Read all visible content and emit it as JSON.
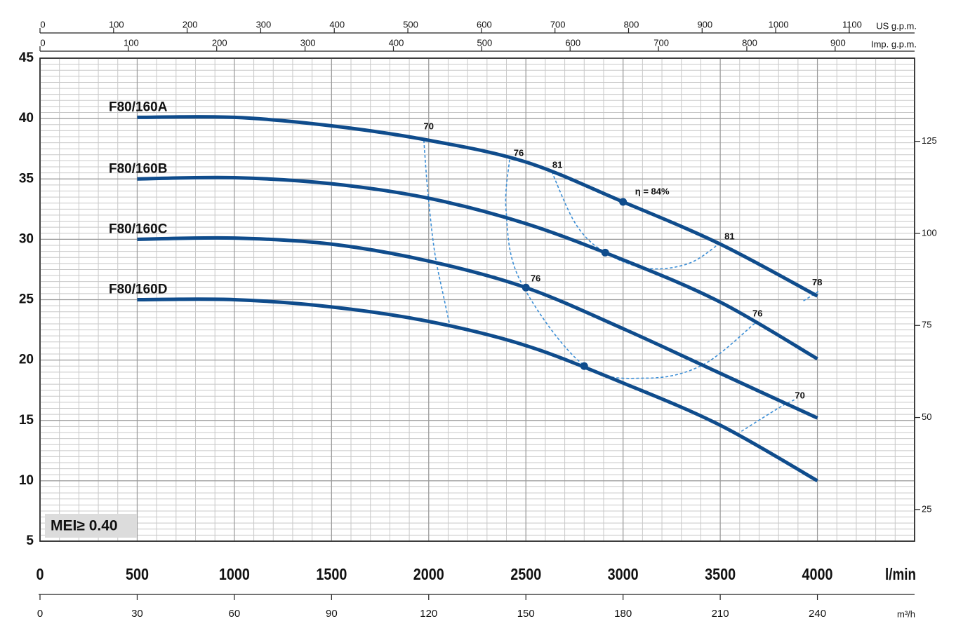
{
  "chart_data": {
    "type": "line",
    "x_label": "l/min",
    "xlim": [
      0,
      4500
    ],
    "xticks": [
      0,
      500,
      1000,
      1500,
      2000,
      2500,
      3000,
      3500,
      4000
    ],
    "ylim": [
      5,
      45
    ],
    "yticks": [
      5,
      10,
      15,
      20,
      25,
      30,
      35,
      40,
      45
    ],
    "grid": true,
    "y2lim": [
      16.4,
      147.6
    ],
    "y2ticks": [
      25,
      50,
      75,
      100,
      125
    ],
    "top_axes": [
      {
        "label": "US g.p.m.",
        "lim": [
          0,
          1188.8
        ],
        "ticks": [
          0,
          100,
          200,
          300,
          400,
          500,
          600,
          700,
          800,
          900,
          1000,
          1100
        ]
      },
      {
        "label": "Imp. g.p.m.",
        "lim": [
          0,
          989.9
        ],
        "ticks": [
          0,
          100,
          200,
          300,
          400,
          500,
          600,
          700,
          800,
          900
        ]
      }
    ],
    "bottom_axis2": {
      "label": "m³/h",
      "lim": [
        0,
        270
      ],
      "ticks": [
        0,
        30,
        60,
        90,
        120,
        150,
        180,
        210,
        240
      ]
    },
    "series": [
      {
        "name": "F80/160A",
        "color": "#0f4c8c",
        "x": [
          500,
          1000,
          1500,
          2000,
          2500,
          3000,
          3500,
          4000
        ],
        "values": [
          40.1,
          40.1,
          39.4,
          38.2,
          36.4,
          33.1,
          29.6,
          25.3
        ]
      },
      {
        "name": "F80/160B",
        "color": "#0f4c8c",
        "x": [
          500,
          1000,
          1500,
          2000,
          2500,
          3000,
          3500,
          4000
        ],
        "values": [
          35.0,
          35.1,
          34.6,
          33.4,
          31.3,
          28.3,
          24.8,
          20.1
        ]
      },
      {
        "name": "F80/160C",
        "color": "#0f4c8c",
        "x": [
          500,
          1000,
          1500,
          2000,
          2500,
          3000,
          3500,
          4000
        ],
        "values": [
          30.0,
          30.1,
          29.6,
          28.2,
          26.0,
          22.6,
          18.9,
          15.2
        ]
      },
      {
        "name": "F80/160D",
        "color": "#0f4c8c",
        "x": [
          500,
          1000,
          1500,
          2000,
          2500,
          3000,
          3500,
          4000
        ],
        "values": [
          25.0,
          25.0,
          24.4,
          23.2,
          21.2,
          18.1,
          14.6,
          10.0
        ]
      }
    ],
    "efficiency_color": "#3b8ed6",
    "efficiency_curves": [
      {
        "x": [
          1975,
          1995,
          2030,
          2080,
          2110
        ],
        "values": [
          38.2,
          34.0,
          29.0,
          25.0,
          22.8
        ]
      },
      {
        "x": [
          2416,
          2398,
          2470,
          2796,
          3121,
          3410,
          3682
        ],
        "values": [
          36.6,
          32.4,
          26.6,
          19.6,
          18.5,
          19.6,
          23.1
        ]
      },
      {
        "x": [
          2633,
          2759,
          2908,
          3121,
          3338,
          3508
        ],
        "values": [
          35.6,
          31.2,
          28.9,
          27.6,
          28.0,
          29.8
        ]
      },
      {
        "x": [
          3609,
          3808,
          3881
        ],
        "values": [
          14.1,
          16.1,
          16.7
        ]
      },
      {
        "x": [
          3928,
          4007
        ],
        "values": [
          24.9,
          25.7
        ]
      }
    ],
    "efficiency_labels": [
      {
        "text": "70",
        "x": 2000,
        "y": 39.3
      },
      {
        "text": "76",
        "x": 2463,
        "y": 37.1
      },
      {
        "text": "81",
        "x": 2662,
        "y": 36.1
      },
      {
        "text": "η = 84%",
        "x": 3150,
        "y": 33.9
      },
      {
        "text": "81",
        "x": 3548,
        "y": 30.2
      },
      {
        "text": "78",
        "x": 3999,
        "y": 26.4
      },
      {
        "text": "76",
        "x": 2550,
        "y": 26.7
      },
      {
        "text": "76",
        "x": 3692,
        "y": 23.8
      },
      {
        "text": "70",
        "x": 3910,
        "y": 17.0
      }
    ],
    "markers": {
      "x": [
        3000,
        2908,
        2500,
        2800
      ],
      "values": [
        33.1,
        28.9,
        26.0,
        19.5
      ]
    },
    "badge": "MEI≥ 0.40"
  }
}
